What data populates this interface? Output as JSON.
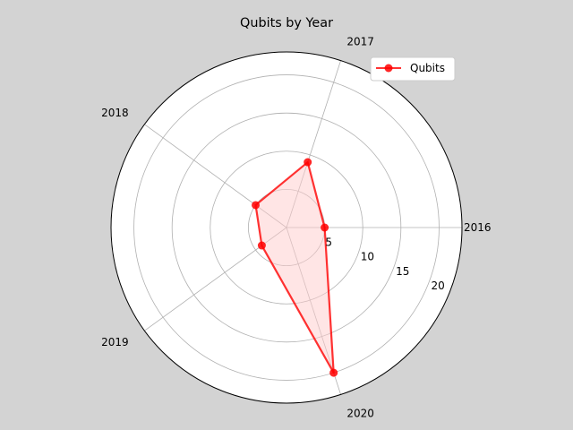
{
  "chart_data": {
    "type": "radar",
    "title": "Qubits by Year",
    "categories": [
      "2016",
      "2017",
      "2018",
      "2019",
      "2020"
    ],
    "series": [
      {
        "name": "Qubits",
        "values": [
          5,
          9,
          5,
          4,
          20
        ]
      }
    ],
    "radial_ticks": [
      5,
      10,
      15,
      20
    ],
    "rlim": [
      0,
      23
    ],
    "grid": true,
    "legend_position": "top-right",
    "colors": {
      "background": "#d3d3d3",
      "plot_area": "#ffffff",
      "line": "#ff0000",
      "fill": "#ffcccc",
      "grid": "#b0b0b0"
    }
  }
}
